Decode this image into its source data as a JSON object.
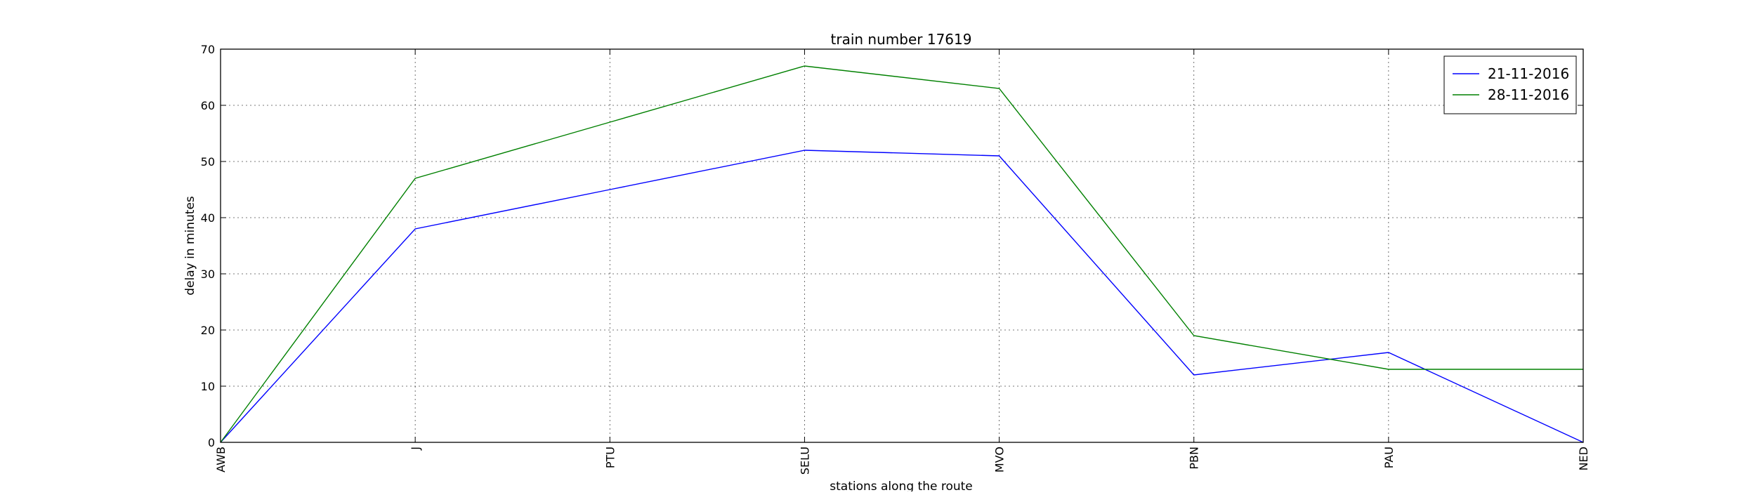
{
  "chart_data": {
    "type": "line",
    "title": "train number 17619",
    "xlabel": "stations along the route",
    "ylabel": "delay in minutes",
    "categories": [
      "AWB",
      "J",
      "PTU",
      "SELU",
      "MVO",
      "PBN",
      "PAU",
      "NED"
    ],
    "ylim": [
      0,
      70
    ],
    "yticks": [
      0,
      10,
      20,
      30,
      40,
      50,
      60,
      70
    ],
    "grid": true,
    "legend_position": "top-right",
    "series": [
      {
        "name": "21-11-2016",
        "color": "#0000ff",
        "values": [
          0,
          38,
          45,
          52,
          51,
          12,
          16,
          0
        ]
      },
      {
        "name": "28-11-2016",
        "color": "#008000",
        "values": [
          0,
          47,
          57,
          67,
          63,
          19,
          13,
          13
        ]
      }
    ]
  }
}
